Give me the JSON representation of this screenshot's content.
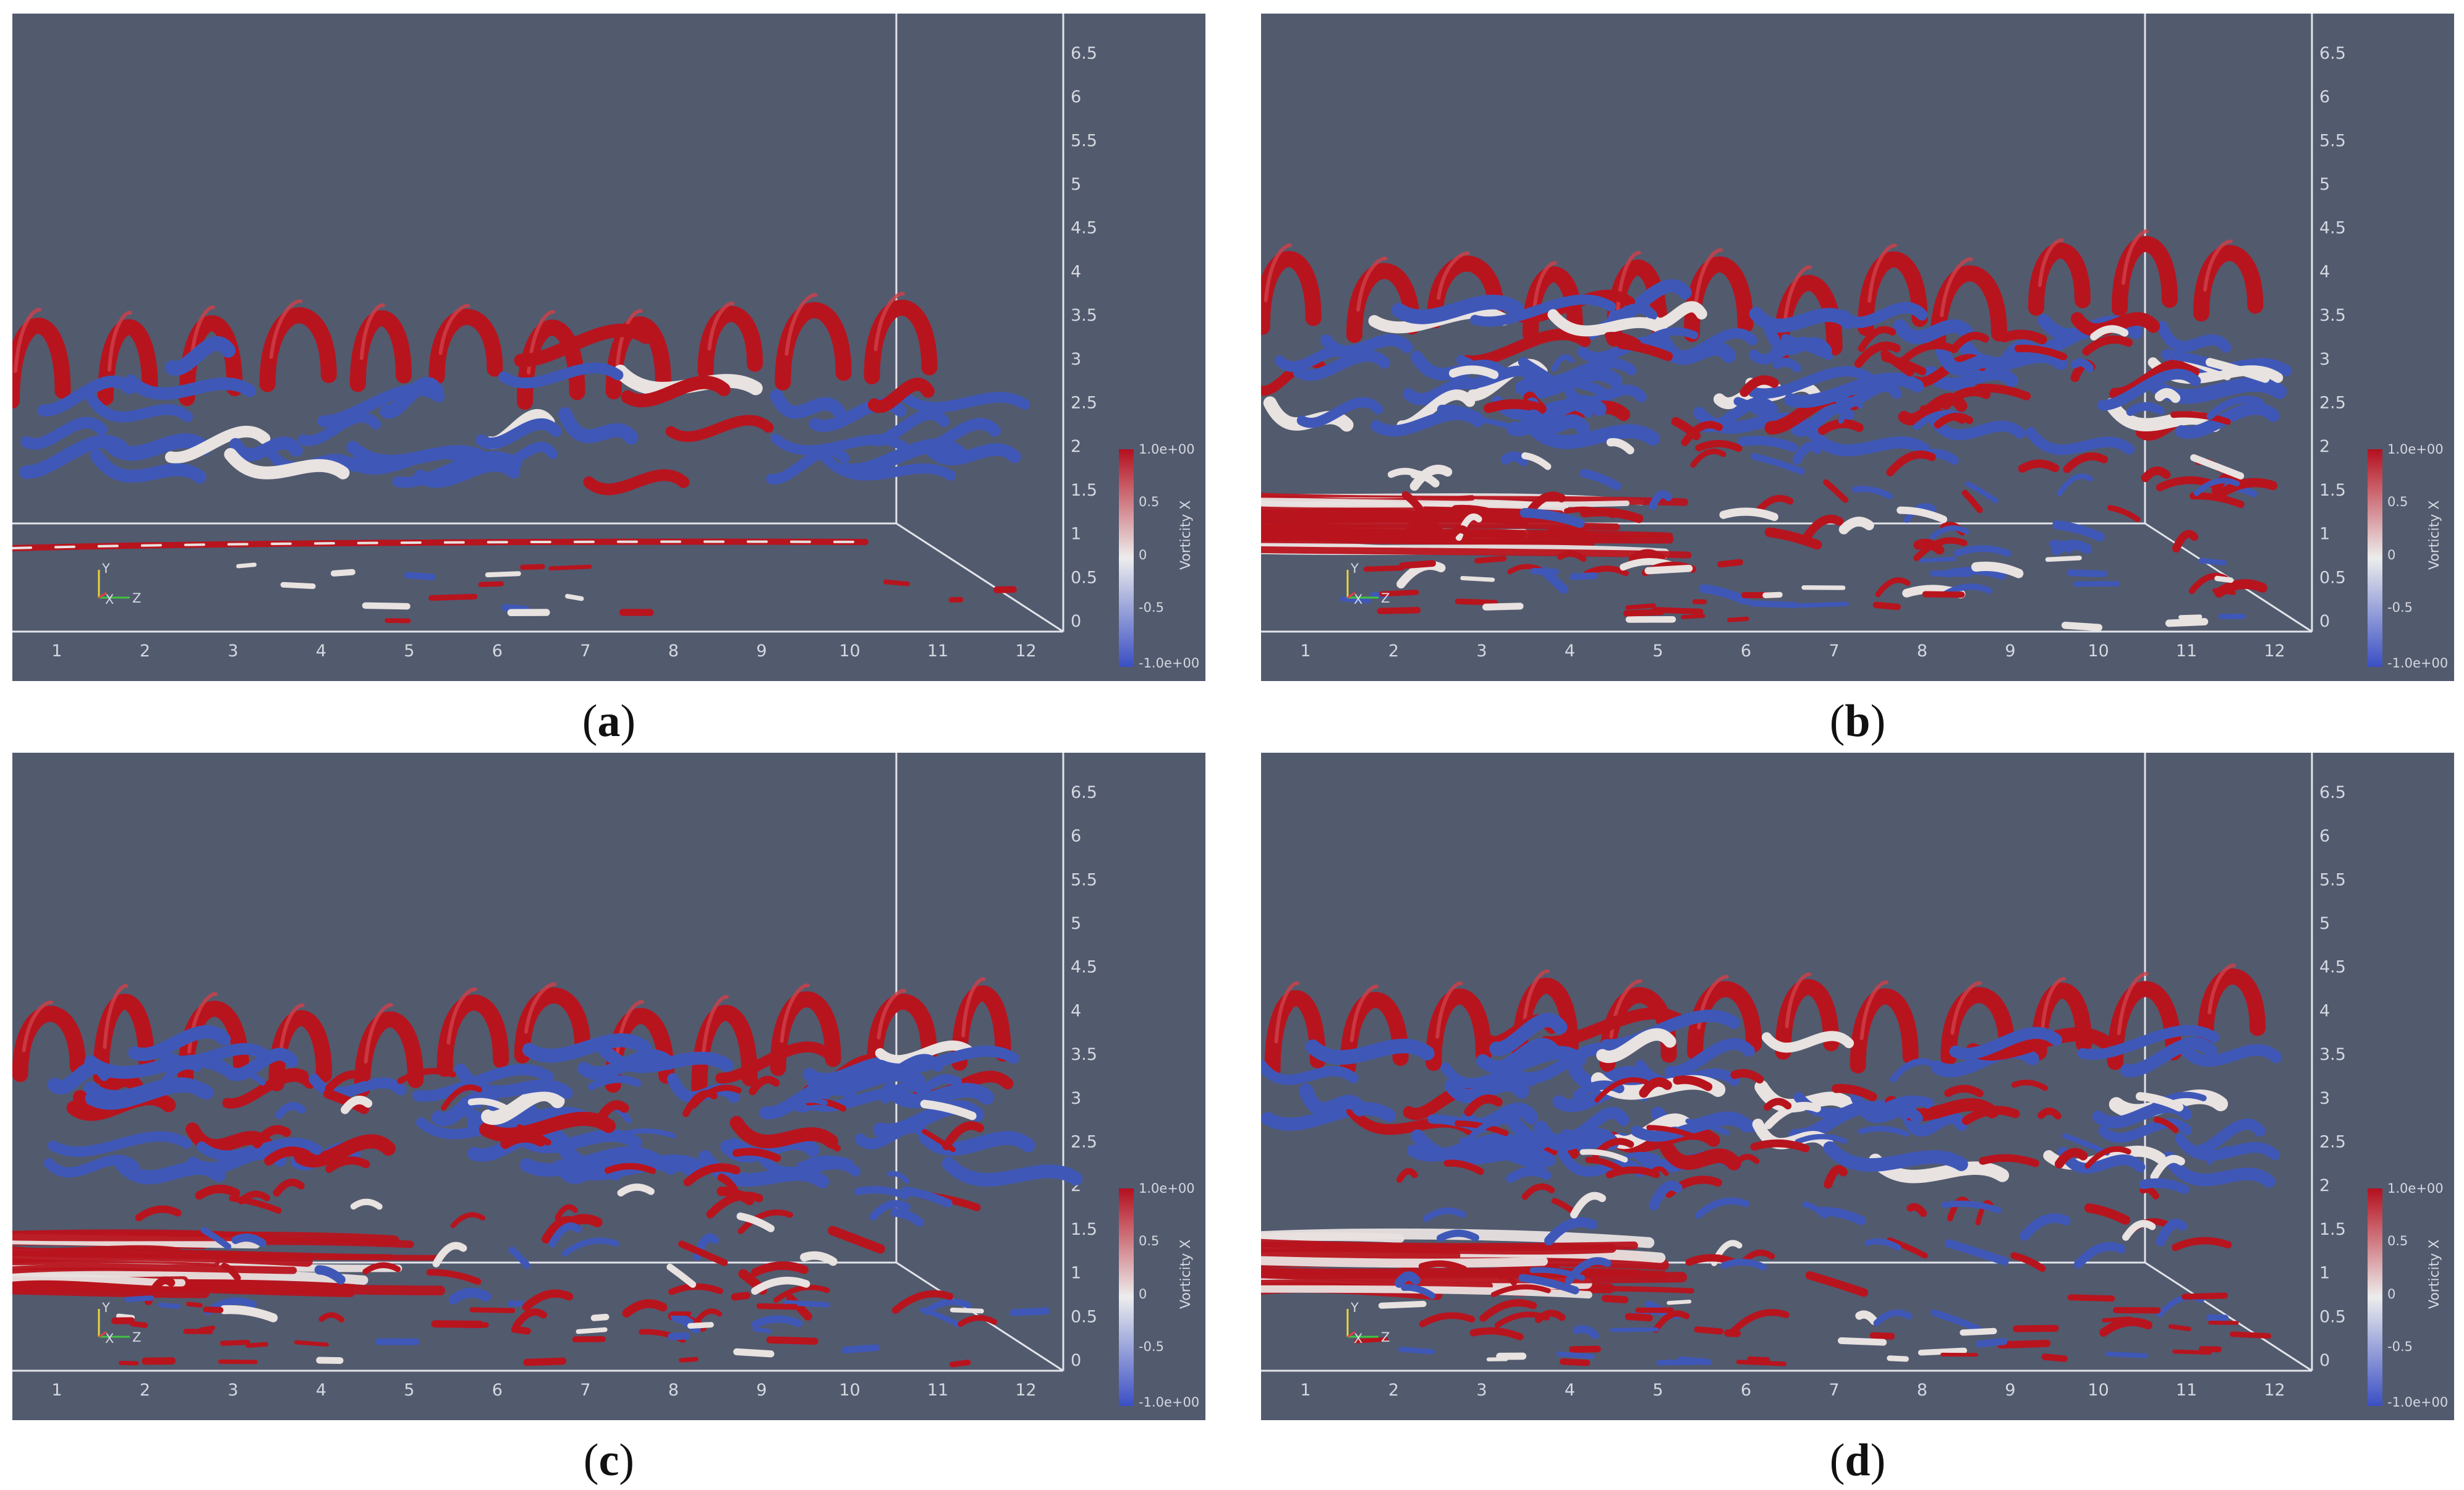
{
  "panels": [
    {
      "id": "a",
      "caption": "a"
    },
    {
      "id": "b",
      "caption": "b"
    },
    {
      "id": "c",
      "caption": "c"
    },
    {
      "id": "d",
      "caption": "d"
    }
  ],
  "axis": {
    "x_ticks": [
      "1",
      "2",
      "3",
      "4",
      "5",
      "6",
      "7",
      "8",
      "9",
      "10",
      "11",
      "12"
    ],
    "y_ticks": [
      "0",
      "0.5",
      "1",
      "1.5",
      "2",
      "2.5",
      "3",
      "3.5",
      "4",
      "4.5",
      "5",
      "5.5",
      "6",
      "6.5"
    ]
  },
  "colorbar": {
    "title": "Vorticity X",
    "max_label": "1.0e+00",
    "mid_high_label": "0.5",
    "mid_label": "0",
    "mid_low_label": "-0.5",
    "min_label": "-1.0e+00",
    "colors": {
      "high": "#b40f1e",
      "mid": "#ededed",
      "low": "#3a4fc4"
    }
  },
  "orientation_axes": {
    "y": "Y",
    "x": "X",
    "z": "Z"
  },
  "colors": {
    "background": "#525a6e",
    "red": "#b8141e",
    "blue": "#3f58b8",
    "white": "#e8e2e0",
    "frame": "#e2e4ea"
  }
}
